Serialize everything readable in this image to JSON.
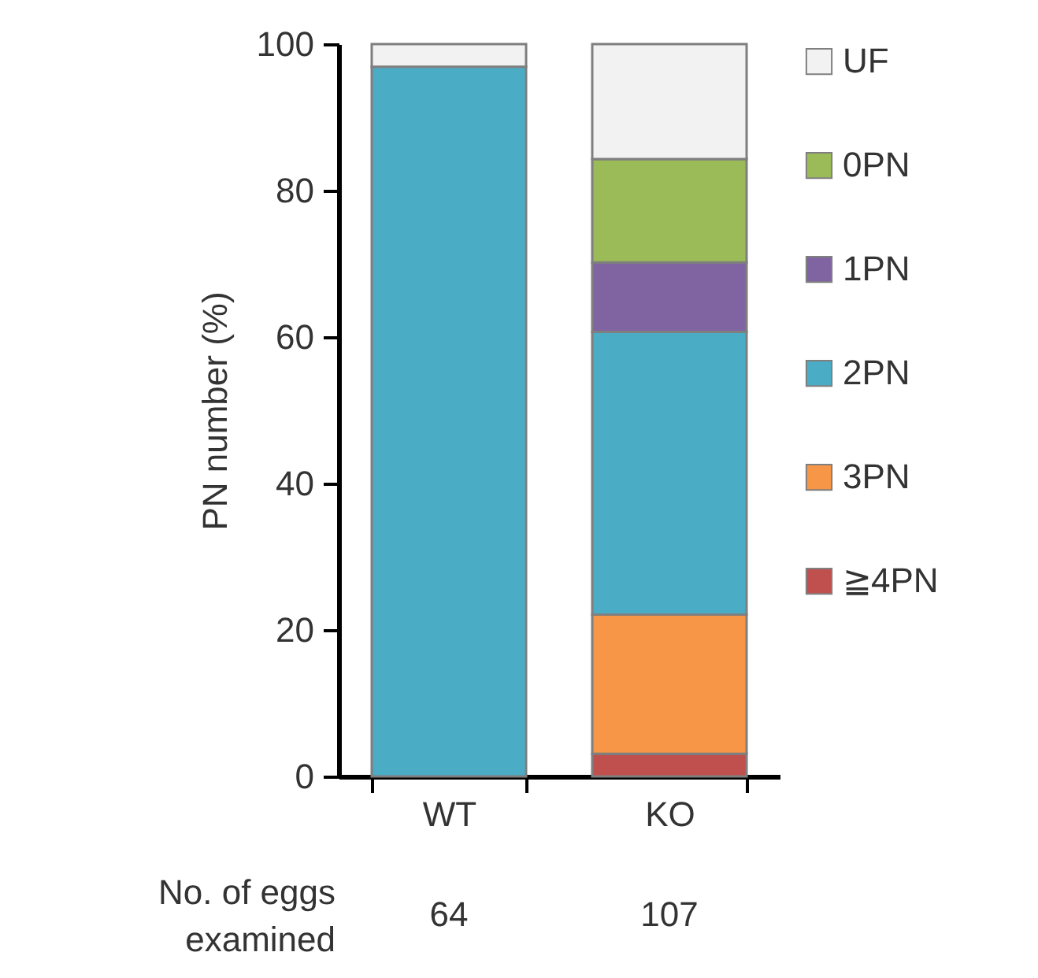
{
  "chart_data": {
    "type": "bar",
    "stacked": true,
    "ylabel": "PN number (%)",
    "categories": [
      "WT",
      "KO"
    ],
    "series": [
      {
        "name": "≧4PN",
        "color": "#c0504d",
        "values": [
          null,
          3.1
        ]
      },
      {
        "name": "3PN",
        "color": "#f79646",
        "values": [
          null,
          19.0
        ]
      },
      {
        "name": "2PN",
        "color": "#4bacc6",
        "values": [
          96.9,
          38.6
        ]
      },
      {
        "name": "1PN",
        "color": "#8064a2",
        "values": [
          null,
          9.5
        ]
      },
      {
        "name": "0PN",
        "color": "#9bbb59",
        "values": [
          null,
          14.1
        ]
      },
      {
        "name": "UF",
        "color": "#f2f2f2",
        "values": [
          3.1,
          15.7
        ]
      }
    ],
    "ylim": [
      0,
      100
    ],
    "yticks": [
      0,
      20,
      40,
      60,
      80,
      100
    ],
    "grid": false,
    "legend": "right",
    "annotations": [
      "No. of eggs examined",
      "64",
      "107"
    ]
  }
}
